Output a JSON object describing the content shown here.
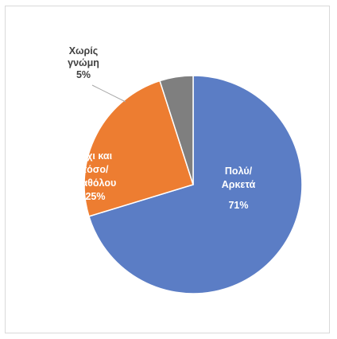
{
  "chart_data": {
    "type": "pie",
    "title": "",
    "slices": [
      {
        "label_lines": [
          "Πολύ/",
          "Αρκετά"
        ],
        "value": 71,
        "value_label": "71%",
        "color": "#5b7dc5",
        "label_color": "#ffffff"
      },
      {
        "label_lines": [
          "Όχι και",
          "τόσο/",
          "Καθόλου"
        ],
        "value": 25,
        "value_label": "25%",
        "color": "#ed7d31",
        "label_color": "#ffffff"
      },
      {
        "label_lines": [
          "Χωρίς",
          "γνώμη"
        ],
        "value": 5,
        "value_label": "5%",
        "color": "#7f7f7f",
        "label_color": "#404040"
      }
    ],
    "start_angle_deg": 0,
    "direction": "clockwise",
    "legend": "none",
    "slice_border_color": "#ffffff"
  }
}
